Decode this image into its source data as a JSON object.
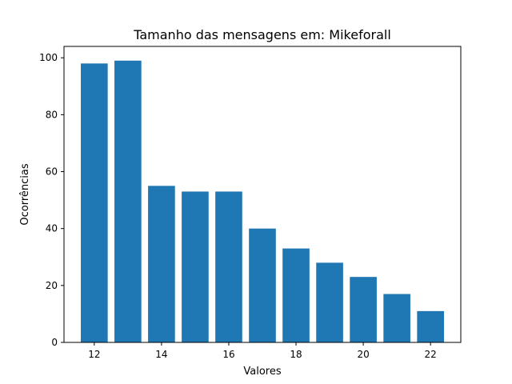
{
  "chart_data": {
    "type": "bar",
    "title": "Tamanho das mensagens em: Mikeforall",
    "xlabel": "Valores",
    "ylabel": "Ocorrências",
    "x": [
      12,
      13,
      14,
      15,
      16,
      17,
      18,
      19,
      20,
      21,
      22
    ],
    "values": [
      98,
      99,
      55,
      53,
      53,
      40,
      33,
      28,
      23,
      17,
      11
    ],
    "xlim": [
      11.1,
      22.9
    ],
    "ylim": [
      0,
      104
    ],
    "xticks": [
      12,
      14,
      16,
      18,
      20,
      22
    ],
    "yticks": [
      0,
      20,
      40,
      60,
      80,
      100
    ],
    "bar_color": "#1f77b4",
    "grid": false,
    "legend": "none"
  }
}
